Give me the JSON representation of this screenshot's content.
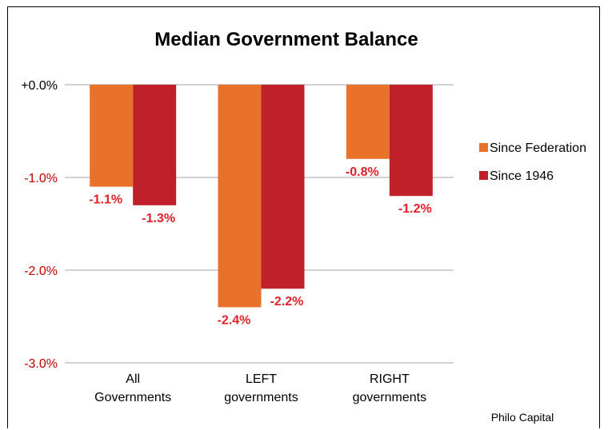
{
  "chart_data": {
    "type": "bar",
    "title": "Median Government Balance",
    "categories": [
      [
        "All",
        "Governments"
      ],
      [
        "LEFT",
        "governments"
      ],
      [
        "RIGHT",
        "governments"
      ]
    ],
    "series": [
      {
        "name": "Since Federation",
        "color": "#e8722a",
        "values": [
          -1.1,
          -2.4,
          -0.8
        ],
        "labels": [
          "-1.1%",
          "-2.4%",
          "-0.8%"
        ]
      },
      {
        "name": "Since 1946",
        "color": "#c0202a",
        "values": [
          -1.3,
          -2.2,
          -1.2
        ],
        "labels": [
          "-1.3%",
          "-2.2%",
          "-1.2%"
        ]
      }
    ],
    "ylim": [
      -3.0,
      0.0
    ],
    "yticks": [
      {
        "value": 0.0,
        "label": "+0.0%"
      },
      {
        "value": -1.0,
        "label": "-1.0%"
      },
      {
        "value": -2.0,
        "label": "-2.0%"
      },
      {
        "value": -3.0,
        "label": "-3.0%"
      }
    ],
    "grid": true,
    "legend": "right",
    "xlabel": "",
    "ylabel": ""
  },
  "credit": "Philo Capital",
  "colors": {
    "grid": "#a6a6a6",
    "tick_negative": "#c00000",
    "data_label": "#e0202a"
  }
}
